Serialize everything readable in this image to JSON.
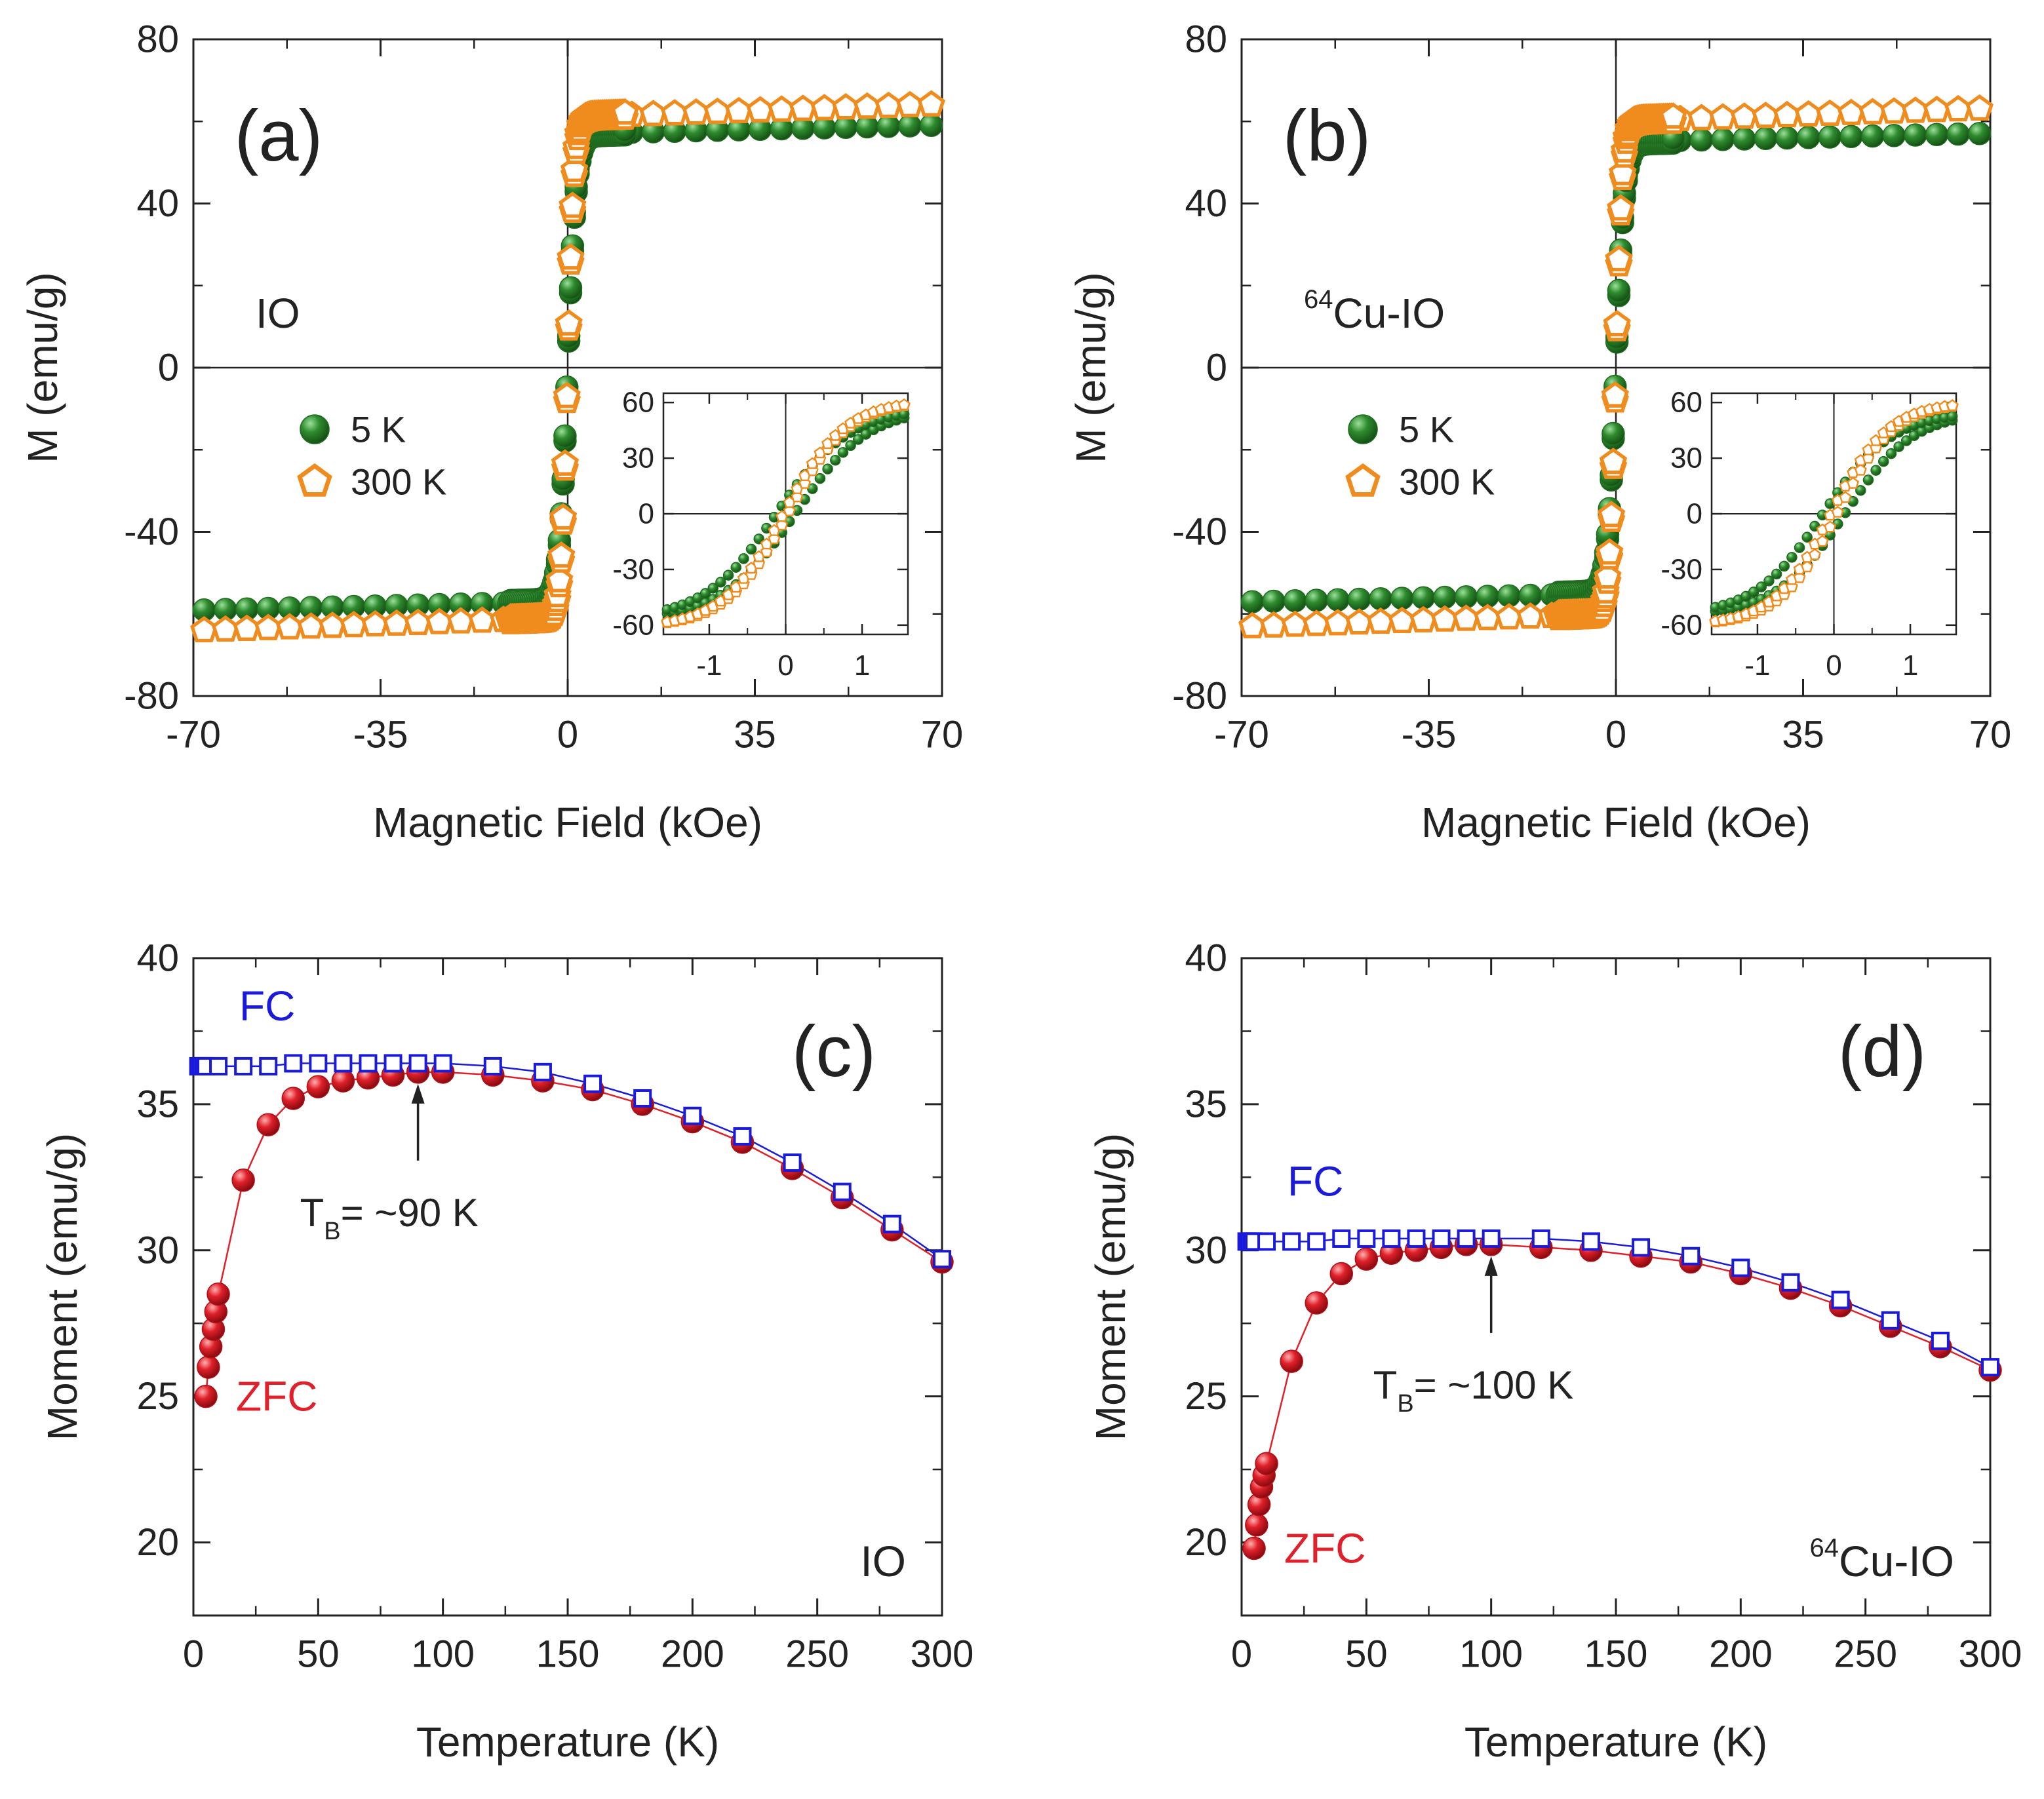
{
  "figure": {
    "colors": {
      "axis": "#222222",
      "green": "#2e8b2e",
      "green_dark": "#1f6b1f",
      "orange": "#f08c1e",
      "red": "#e0202a",
      "red_dark": "#b01018",
      "blue": "#1a1adb"
    }
  },
  "chart_data": [
    {
      "id": "a",
      "type": "scatter",
      "panel_label": "(a)",
      "sample_label": "IO",
      "xlabel": "Magnetic Field (kOe)",
      "ylabel": "M (emu/g)",
      "xlim": [
        -70,
        70
      ],
      "ylim": [
        -80,
        80
      ],
      "xticks": [
        -70,
        -35,
        0,
        35,
        70
      ],
      "yticks": [
        -80,
        -40,
        0,
        40,
        80
      ],
      "zero_lines": true,
      "legend": {
        "placement": "left-middle",
        "entries": [
          "5 K",
          "300 K"
        ]
      },
      "series": [
        {
          "name": "5 K",
          "marker": "sphere",
          "color": "green",
          "Ms": 57.0,
          "width_koe": 1.6,
          "slope": 0.03
        },
        {
          "name": "300 K",
          "marker": "pentagon",
          "color": "orange",
          "Ms": 61.0,
          "width_koe": 1.2,
          "slope": 0.045
        }
      ],
      "inset": {
        "xlim": [
          -1.6,
          1.6
        ],
        "ylim": [
          -65,
          65
        ],
        "xticks": [
          -1,
          0,
          1
        ],
        "yticks": [
          -60,
          -30,
          0,
          30,
          60
        ],
        "series": [
          {
            "name": "5 K",
            "marker": "sphere",
            "color": "green",
            "Ms": 57.0,
            "width_koe": 0.95,
            "coercivity": 0.12
          },
          {
            "name": "300 K",
            "marker": "pentagon",
            "color": "orange",
            "Ms": 61.0,
            "width_koe": 0.8,
            "coercivity": 0.03
          }
        ]
      }
    },
    {
      "id": "b",
      "type": "scatter",
      "panel_label": "(b)",
      "sample_label_sup": "64",
      "sample_label": "Cu-IO",
      "xlabel": "Magnetic Field (kOe)",
      "ylabel": "M (emu/g)",
      "xlim": [
        -70,
        70
      ],
      "ylim": [
        -80,
        80
      ],
      "xticks": [
        -70,
        -35,
        0,
        35,
        70
      ],
      "yticks": [
        -80,
        -40,
        0,
        40,
        80
      ],
      "zero_lines": true,
      "legend": {
        "placement": "left-middle",
        "entries": [
          "5 K",
          "300 K"
        ]
      },
      "series": [
        {
          "name": "5 K",
          "marker": "sphere",
          "color": "green",
          "Ms": 55.0,
          "width_koe": 1.6,
          "slope": 0.03
        },
        {
          "name": "300 K",
          "marker": "pentagon",
          "color": "orange",
          "Ms": 60.0,
          "width_koe": 1.2,
          "slope": 0.045
        }
      ],
      "inset": {
        "xlim": [
          -1.6,
          1.6
        ],
        "ylim": [
          -65,
          65
        ],
        "xticks": [
          -1,
          0,
          1
        ],
        "yticks": [
          -60,
          -30,
          0,
          30,
          60
        ],
        "series": [
          {
            "name": "5 K",
            "marker": "sphere",
            "color": "green",
            "Ms": 55.0,
            "width_koe": 0.9,
            "coercivity": 0.14
          },
          {
            "name": "300 K",
            "marker": "pentagon",
            "color": "orange",
            "Ms": 60.0,
            "width_koe": 0.75,
            "coercivity": 0.04
          }
        ]
      }
    },
    {
      "id": "c",
      "type": "line",
      "panel_label": "(c)",
      "sample_label": "IO",
      "xlabel": "Temperature (K)",
      "ylabel": "Moment (emu/g)",
      "xlim": [
        0,
        300
      ],
      "ylim": [
        17.5,
        40
      ],
      "xticks": [
        0,
        50,
        100,
        150,
        200,
        250,
        300
      ],
      "yticks": [
        20,
        25,
        30,
        35,
        40
      ],
      "labels": {
        "fc": "FC",
        "zfc": "ZFC"
      },
      "annotation": {
        "text_main": "T",
        "text_sub": "B",
        "text_rest": "= ~90 K",
        "x": 90
      },
      "series": [
        {
          "name": "FC",
          "marker": "open-square",
          "color": "blue",
          "x": [
            2,
            3,
            4,
            5,
            10,
            20,
            30,
            40,
            50,
            60,
            70,
            80,
            90,
            100,
            120,
            140,
            160,
            180,
            200,
            220,
            240,
            260,
            280,
            300
          ],
          "y": [
            36.3,
            36.3,
            36.3,
            36.3,
            36.3,
            36.3,
            36.3,
            36.4,
            36.4,
            36.4,
            36.4,
            36.4,
            36.4,
            36.4,
            36.3,
            36.1,
            35.7,
            35.2,
            34.6,
            33.9,
            33.0,
            32.0,
            30.9,
            29.7
          ]
        },
        {
          "name": "ZFC",
          "marker": "sphere",
          "color": "red",
          "x": [
            5,
            6,
            7,
            8,
            9,
            10,
            20,
            30,
            40,
            50,
            60,
            70,
            80,
            90,
            100,
            120,
            140,
            160,
            180,
            200,
            220,
            240,
            260,
            280,
            300
          ],
          "y": [
            25.0,
            26.0,
            26.7,
            27.3,
            27.9,
            28.5,
            32.4,
            34.3,
            35.2,
            35.6,
            35.8,
            35.9,
            36.0,
            36.1,
            36.1,
            36.0,
            35.8,
            35.5,
            35.0,
            34.4,
            33.7,
            32.8,
            31.8,
            30.7,
            29.6
          ]
        }
      ]
    },
    {
      "id": "d",
      "type": "line",
      "panel_label": "(d)",
      "sample_label_sup": "64",
      "sample_label": "Cu-IO",
      "xlabel": "Temperature (K)",
      "ylabel": "Moment (emu/g)",
      "xlim": [
        0,
        300
      ],
      "ylim": [
        17.5,
        40
      ],
      "xticks": [
        0,
        50,
        100,
        150,
        200,
        250,
        300
      ],
      "yticks": [
        20,
        25,
        30,
        35,
        40
      ],
      "labels": {
        "fc": "FC",
        "zfc": "ZFC"
      },
      "annotation": {
        "text_main": "T",
        "text_sub": "B",
        "text_rest": "= ~100 K",
        "x": 100
      },
      "series": [
        {
          "name": "FC",
          "marker": "open-square",
          "color": "blue",
          "x": [
            2,
            3,
            4,
            5,
            10,
            20,
            30,
            40,
            50,
            60,
            70,
            80,
            90,
            100,
            120,
            140,
            160,
            180,
            200,
            220,
            240,
            260,
            280,
            300
          ],
          "y": [
            30.3,
            30.3,
            30.3,
            30.3,
            30.3,
            30.3,
            30.3,
            30.4,
            30.4,
            30.4,
            30.4,
            30.4,
            30.4,
            30.4,
            30.4,
            30.3,
            30.1,
            29.8,
            29.4,
            28.9,
            28.3,
            27.6,
            26.9,
            26.0
          ]
        },
        {
          "name": "ZFC",
          "marker": "sphere",
          "color": "red",
          "x": [
            5,
            6,
            7,
            8,
            9,
            10,
            20,
            30,
            40,
            50,
            60,
            70,
            80,
            90,
            100,
            120,
            140,
            160,
            180,
            200,
            220,
            240,
            260,
            280,
            300
          ],
          "y": [
            19.8,
            20.6,
            21.3,
            21.9,
            22.3,
            22.7,
            26.2,
            28.2,
            29.2,
            29.7,
            29.9,
            30.0,
            30.1,
            30.2,
            30.2,
            30.1,
            30.0,
            29.8,
            29.6,
            29.2,
            28.7,
            28.1,
            27.4,
            26.7,
            25.9
          ]
        }
      ]
    }
  ]
}
